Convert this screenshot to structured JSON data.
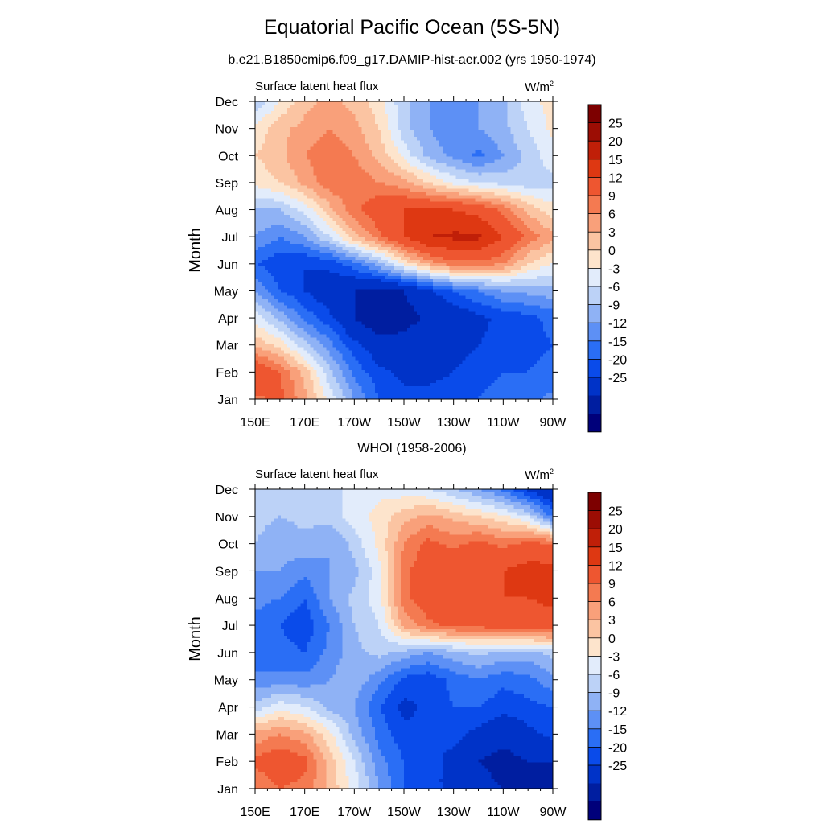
{
  "figure": {
    "title": "Equatorial Pacific Ocean (5S-5N)"
  },
  "colorbar": {
    "colors": [
      "#00007a",
      "#001ea0",
      "#0033c8",
      "#0a4bea",
      "#2a6ef5",
      "#5d90f5",
      "#8fb2f5",
      "#bcd2f7",
      "#e2ecfb",
      "#fde4cc",
      "#fbc4a2",
      "#f9a07a",
      "#f47a51",
      "#ee5630",
      "#de3812",
      "#c01f08",
      "#9c0d04",
      "#7d0000"
    ],
    "labels": [
      "25",
      "20",
      "15",
      "12",
      "9",
      "6",
      "3",
      "0",
      "-3",
      "-6",
      "-9",
      "-12",
      "-15",
      "-20",
      "-25"
    ],
    "levels": [
      -25,
      -20,
      -15,
      -12,
      -9,
      -6,
      -3,
      0,
      3,
      6,
      9,
      12,
      15,
      20,
      25
    ]
  },
  "chart_data": [
    {
      "type": "heatmap",
      "subtitle": "b.e21.B1850cmip6.f09_g17.DAMIP-hist-aer.002 (yrs 1950-1974)",
      "left_label": "Surface latent heat flux",
      "units": "W/m",
      "units_sup": "2",
      "ylabel": "Month",
      "xticks": [
        "150E",
        "170E",
        "170W",
        "150W",
        "130W",
        "110W",
        "90W"
      ],
      "yticks": [
        "Jan",
        "Feb",
        "Mar",
        "Apr",
        "May",
        "Jun",
        "Jul",
        "Aug",
        "Sep",
        "Oct",
        "Nov",
        "Dec"
      ],
      "xrange": [
        150,
        270
      ],
      "yrange": [
        1,
        12
      ],
      "x": [
        150,
        160,
        170,
        180,
        190,
        200,
        210,
        220,
        230,
        240,
        250,
        260,
        270
      ],
      "y": [
        1,
        2,
        3,
        4,
        5,
        6,
        7,
        8,
        9,
        10,
        11,
        12
      ],
      "values": [
        [
          14,
          16,
          10,
          2,
          -6,
          -12,
          -14,
          -14,
          -13,
          -12,
          -10,
          -10,
          -8
        ],
        [
          20,
          15,
          8,
          -2,
          -10,
          -14,
          -16,
          -16,
          -15,
          -14,
          -12,
          -12,
          -11
        ],
        [
          8,
          5,
          -2,
          -8,
          -14,
          -18,
          -18,
          -17,
          -16,
          -15,
          -14,
          -13,
          -12
        ],
        [
          2,
          -4,
          -10,
          -14,
          -20,
          -24,
          -22,
          -19,
          -18,
          -16,
          -14,
          -13,
          -11
        ],
        [
          -6,
          -12,
          -15,
          -18,
          -20,
          -22,
          -20,
          -16,
          -12,
          -9,
          -6,
          -5,
          -4
        ],
        [
          -12,
          -14,
          -15,
          -14,
          -10,
          -4,
          4,
          10,
          14,
          14,
          12,
          6,
          3
        ],
        [
          -6,
          -9,
          -6,
          0,
          8,
          14,
          20,
          25,
          26,
          26,
          20,
          14,
          10
        ],
        [
          -3,
          -3,
          1,
          8,
          14,
          18,
          20,
          20,
          20,
          18,
          14,
          8,
          4
        ],
        [
          4,
          6,
          10,
          14,
          14,
          12,
          10,
          6,
          2,
          0,
          -1,
          -2,
          -1
        ],
        [
          6,
          8,
          12,
          14,
          12,
          8,
          2,
          -4,
          -7,
          -10,
          -6,
          -2,
          2
        ],
        [
          4,
          8,
          10,
          12,
          10,
          6,
          -2,
          -6,
          -8,
          -6,
          -4,
          0,
          4
        ],
        [
          -3,
          3,
          8,
          10,
          8,
          4,
          -2,
          -6,
          -8,
          -6,
          -4,
          2,
          4
        ]
      ]
    },
    {
      "type": "heatmap",
      "subtitle": "WHOI (1958-2006)",
      "left_label": "Surface latent heat flux",
      "units": "W/m",
      "units_sup": "2",
      "ylabel": "Month",
      "xticks": [
        "150E",
        "170E",
        "170W",
        "150W",
        "130W",
        "110W",
        "90W"
      ],
      "yticks": [
        "Jan",
        "Feb",
        "Mar",
        "Apr",
        "May",
        "Jun",
        "Jul",
        "Aug",
        "Sep",
        "Oct",
        "Nov",
        "Dec"
      ],
      "xrange": [
        150,
        270
      ],
      "yrange": [
        1,
        12
      ],
      "x": [
        150,
        160,
        170,
        180,
        190,
        200,
        210,
        220,
        230,
        240,
        250,
        260,
        270
      ],
      "y": [
        1,
        2,
        3,
        4,
        5,
        6,
        7,
        8,
        9,
        10,
        11,
        12
      ],
      "values": [
        [
          12,
          15,
          14,
          8,
          2,
          -6,
          -12,
          -14,
          -16,
          -18,
          -20,
          -22,
          -25
        ],
        [
          16,
          18,
          16,
          8,
          0,
          -8,
          -12,
          -14,
          -16,
          -20,
          -22,
          -20,
          -20
        ],
        [
          10,
          12,
          10,
          4,
          -4,
          -10,
          -14,
          -15,
          -14,
          -16,
          -18,
          -16,
          -14
        ],
        [
          -2,
          2,
          0,
          -4,
          -6,
          -12,
          -16,
          -14,
          -12,
          -12,
          -14,
          -13,
          -12
        ],
        [
          -8,
          -8,
          -8,
          -6,
          -4,
          -8,
          -13,
          -14,
          -11,
          -9,
          -11,
          -10,
          -7
        ],
        [
          -12,
          -11,
          -12,
          -8,
          -4,
          -2,
          -4,
          -6,
          -4,
          -2,
          -4,
          -4,
          -2
        ],
        [
          -10,
          -12,
          -14,
          -9,
          -3,
          0,
          10,
          14,
          16,
          16,
          18,
          18,
          18
        ],
        [
          -8,
          -9,
          -12,
          -6,
          -2,
          2,
          14,
          18,
          18,
          18,
          20,
          20,
          21
        ],
        [
          -6,
          -6,
          -8,
          -6,
          -4,
          2,
          14,
          18,
          20,
          18,
          20,
          22,
          22
        ],
        [
          -3,
          -5,
          -4,
          -6,
          -2,
          4,
          12,
          16,
          14,
          16,
          14,
          16,
          15
        ],
        [
          -2,
          -3,
          -2,
          -2,
          2,
          4,
          8,
          10,
          8,
          6,
          4,
          0,
          -10
        ],
        [
          -3,
          -2,
          -2,
          -1,
          1,
          2,
          1,
          0,
          -3,
          -6,
          -10,
          -16,
          -20
        ]
      ]
    }
  ]
}
